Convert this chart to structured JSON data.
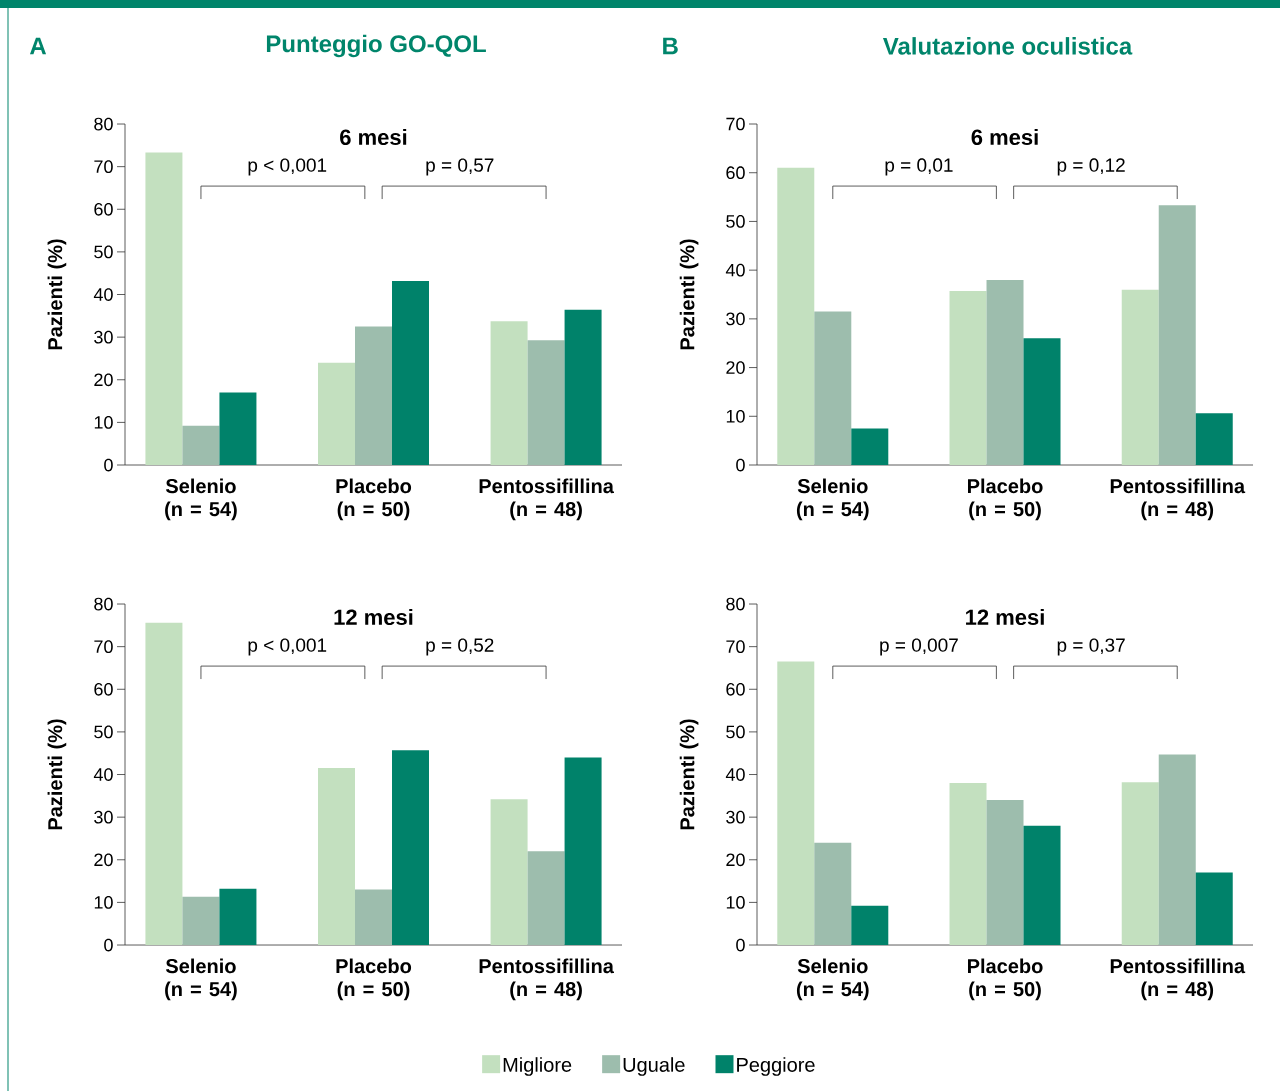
{
  "chart_data": [
    {
      "type": "bar",
      "title": "6 mesi",
      "ylabel": "Pazienti (%)",
      "categories": [
        "Selenio (n = 54)",
        "Placebo (n = 50)",
        "Pentossifillina (n = 48)"
      ],
      "series": [
        {
          "name": "Migliore",
          "color": "#c3e0bf",
          "values": [
            73.3,
            24,
            33.7
          ]
        },
        {
          "name": "Uguale",
          "color": "#9dbdad",
          "values": [
            9.2,
            32.5,
            29.3
          ]
        },
        {
          "name": "Peggiore",
          "color": "#00826a",
          "values": [
            17,
            43.2,
            36.4
          ]
        }
      ],
      "ylim": [
        0,
        80
      ],
      "yticks": [
        0,
        10,
        20,
        30,
        40,
        50,
        60,
        70,
        80
      ],
      "legend": "bottom",
      "annotations": [
        "A",
        "Punteggio GO-QOL",
        "p < 0,001",
        "p = 0,57"
      ]
    },
    {
      "type": "bar",
      "title": "6 mesi",
      "ylabel": "Pazienti (%)",
      "categories": [
        "Selenio (n = 54)",
        "Placebo (n = 50)",
        "Pentossifillina (n = 48)"
      ],
      "series": [
        {
          "color": "#c3e0bf",
          "values": [
            61,
            35.7,
            36
          ]
        },
        {
          "color": "#9dbdad",
          "values": [
            31.5,
            38,
            53.3
          ]
        },
        {
          "color": "#00826a",
          "values": [
            7.5,
            26,
            10.6
          ]
        }
      ],
      "ylim": [
        0,
        70
      ],
      "yticks": [
        0,
        10,
        20,
        30,
        40,
        50,
        60,
        70
      ],
      "annotations": [
        "B",
        "Valutazione oculistica",
        "p = 0,01",
        "p = 0,12"
      ]
    },
    {
      "type": "bar",
      "title": "12 mesi",
      "ylabel": "Pazienti (%)",
      "categories": [
        "Selenio (n = 54)",
        "Placebo (n = 50)",
        "Pentossifillina (n = 48)"
      ],
      "series": [
        {
          "color": "#c3e0bf",
          "values": [
            75.6,
            41.5,
            34.2
          ]
        },
        {
          "color": "#9dbdad",
          "values": [
            11.3,
            13,
            22
          ]
        },
        {
          "color": "#00826a",
          "values": [
            13.2,
            45.7,
            44
          ]
        }
      ],
      "ylim": [
        0,
        80
      ],
      "yticks": [
        0,
        10,
        20,
        30,
        40,
        50,
        60,
        70,
        80
      ],
      "annotations": [
        "p < 0,001",
        "p = 0,52"
      ]
    },
    {
      "type": "bar",
      "title": "12 mesi",
      "ylabel": "Pazienti (%)",
      "categories": [
        "Selenio (n = 54)",
        "Placebo (n = 50)",
        "Pentossifillina (n = 48)"
      ],
      "series": [
        {
          "color": "#c3e0bf",
          "values": [
            66.5,
            38,
            38.2
          ]
        },
        {
          "color": "#9dbdad",
          "values": [
            24,
            34,
            44.7
          ]
        },
        {
          "color": "#00826a",
          "values": [
            9.2,
            28,
            17
          ]
        }
      ],
      "ylim": [
        0,
        80
      ],
      "yticks": [
        0,
        10,
        20,
        30,
        40,
        50,
        60,
        70,
        80
      ],
      "annotations": [
        "p = 0,007",
        "p = 0,37"
      ]
    }
  ]
}
